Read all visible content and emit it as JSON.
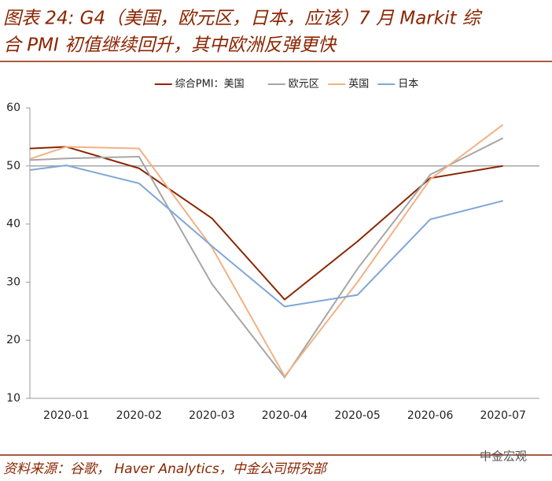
{
  "chart_data": {
    "type": "line",
    "title": [
      "图表 24: G4（美国，欧元区，日本，应该）7 月 Markit  综",
      "合 PMI 初值继续回升，其中欧洲反弹更快"
    ],
    "categories": [
      null,
      "2020-01",
      "2020-02",
      "2020-03",
      "2020-04",
      "2020-05",
      "2020-06",
      "2020-07"
    ],
    "series": [
      {
        "name": "综合PMI：美国",
        "color": "#8B2500",
        "values": [
          53.0,
          53.3,
          49.6,
          41.0,
          27.0,
          37.0,
          47.9,
          50.0
        ]
      },
      {
        "name": "欧元区",
        "color": "#A6A6A6",
        "values": [
          51.0,
          51.3,
          51.6,
          29.7,
          13.6,
          32.3,
          48.5,
          54.8
        ]
      },
      {
        "name": "英国",
        "color": "#F4B183",
        "values": [
          51.2,
          53.3,
          53.0,
          36.0,
          13.8,
          30.0,
          47.7,
          57.1
        ]
      },
      {
        "name": "日本",
        "color": "#7FA7D8",
        "values": [
          49.3,
          50.1,
          47.0,
          36.2,
          25.8,
          27.8,
          40.8,
          44.0
        ]
      }
    ],
    "ylim": [
      10,
      60
    ],
    "yticks": [
      10,
      20,
      30,
      40,
      50,
      60
    ],
    "reference_line": 50,
    "legend": "top",
    "source": "资料来源：谷歌，  Haver Analytics，中金公司研究部",
    "watermark": "中金宏观"
  }
}
